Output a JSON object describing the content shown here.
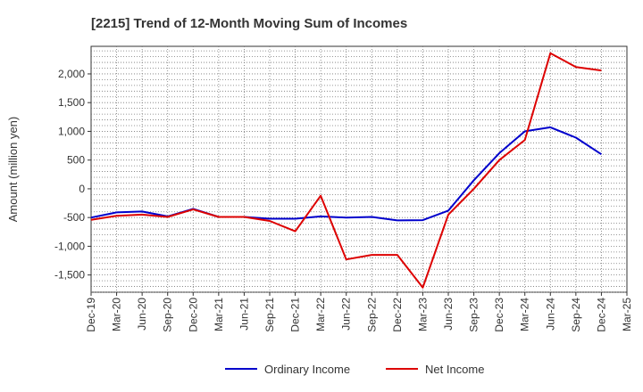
{
  "chart_data": {
    "type": "line",
    "title": "[2215]  Trend of 12-Month Moving Sum of Incomes",
    "xlabel": "",
    "ylabel": "Amount (million yen)",
    "ylim": [
      -1800,
      2480
    ],
    "yticks": [
      -1500,
      -1000,
      -500,
      0,
      500,
      1000,
      1500,
      2000
    ],
    "ytick_labels": [
      "-1,500",
      "-1,000",
      "-500",
      "0",
      "500",
      "1,000",
      "1,500",
      "2,000"
    ],
    "categories": [
      "Dec-19",
      "Mar-20",
      "Jun-20",
      "Sep-20",
      "Dec-20",
      "Mar-21",
      "Jun-21",
      "Sep-21",
      "Dec-21",
      "Mar-22",
      "Jun-22",
      "Sep-22",
      "Dec-22",
      "Mar-23",
      "Jun-23",
      "Sep-23",
      "Dec-23",
      "Mar-24",
      "Jun-24",
      "Sep-24",
      "Dec-24",
      "Mar-25"
    ],
    "grid": true,
    "legend_position": "bottom",
    "series": [
      {
        "name": "Ordinary Income",
        "color": "#0000cc",
        "values": [
          -500,
          -410,
          -395,
          -480,
          -350,
          -490,
          -490,
          -520,
          -520,
          -480,
          -500,
          -490,
          -550,
          -545,
          -380,
          150,
          620,
          1000,
          1070,
          890,
          600,
          null
        ]
      },
      {
        "name": "Net Income",
        "color": "#dd0000",
        "values": [
          -540,
          -470,
          -450,
          -490,
          -360,
          -490,
          -490,
          -560,
          -740,
          -120,
          -1230,
          -1150,
          -1150,
          -1720,
          -450,
          0,
          500,
          850,
          2360,
          2120,
          2060,
          null
        ]
      }
    ]
  }
}
